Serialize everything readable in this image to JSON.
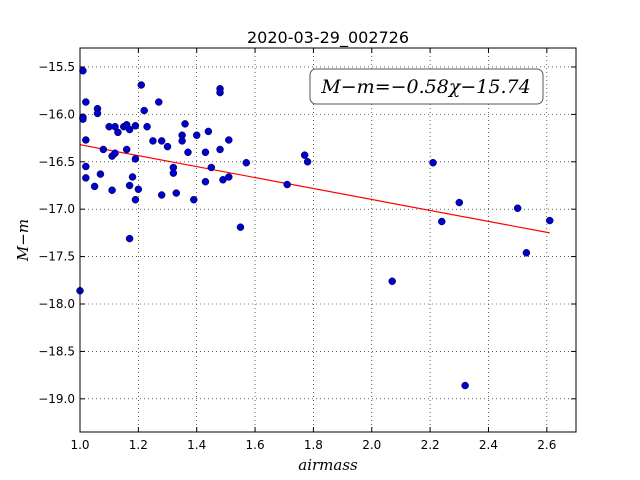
{
  "chart_data": {
    "type": "scatter",
    "title": "2020-03-29_002726",
    "xlabel": "airmass",
    "ylabel": "M−m",
    "xlim": [
      1.0,
      2.7
    ],
    "ylim": [
      -15.3,
      -19.35
    ],
    "y_inverted": true,
    "xticks": [
      1.0,
      1.2,
      1.4,
      1.6,
      1.8,
      2.0,
      2.2,
      2.4,
      2.6
    ],
    "xtick_labels": [
      "1.0",
      "1.2",
      "1.4",
      "1.6",
      "1.8",
      "2.0",
      "2.2",
      "2.4",
      "2.6"
    ],
    "yticks": [
      -15.5,
      -16.0,
      -16.5,
      -17.0,
      -17.5,
      -18.0,
      -18.5,
      -19.0
    ],
    "ytick_labels": [
      "−15.5",
      "−16.0",
      "−16.5",
      "−17.0",
      "−17.5",
      "−18.0",
      "−18.5",
      "−19.0"
    ],
    "grid": true,
    "annotation": "M−m=−0.58χ−15.74",
    "annotation_placement": "top-right",
    "series": [
      {
        "type": "scatter",
        "color": "#0000cc",
        "x": [
          1.0,
          1.01,
          1.01,
          1.01,
          1.02,
          1.02,
          1.02,
          1.02,
          1.05,
          1.06,
          1.06,
          1.07,
          1.08,
          1.1,
          1.11,
          1.11,
          1.12,
          1.12,
          1.13,
          1.15,
          1.16,
          1.16,
          1.17,
          1.17,
          1.17,
          1.18,
          1.19,
          1.19,
          1.19,
          1.2,
          1.21,
          1.22,
          1.23,
          1.25,
          1.27,
          1.28,
          1.28,
          1.3,
          1.32,
          1.32,
          1.33,
          1.35,
          1.35,
          1.36,
          1.37,
          1.39,
          1.4,
          1.43,
          1.43,
          1.44,
          1.45,
          1.48,
          1.48,
          1.48,
          1.49,
          1.51,
          1.51,
          1.55,
          1.57,
          1.71,
          1.77,
          1.78,
          2.07,
          2.21,
          2.24,
          2.3,
          2.32,
          2.5,
          2.53,
          2.61
        ],
        "y": [
          -17.86,
          -15.54,
          -16.03,
          -16.05,
          -15.87,
          -16.27,
          -16.55,
          -16.67,
          -16.76,
          -15.94,
          -15.99,
          -16.63,
          -16.37,
          -16.13,
          -16.44,
          -16.8,
          -16.13,
          -16.41,
          -16.19,
          -16.13,
          -16.11,
          -16.37,
          -16.16,
          -16.75,
          -17.31,
          -16.66,
          -16.12,
          -16.47,
          -16.9,
          -16.79,
          -15.69,
          -15.96,
          -16.13,
          -16.28,
          -15.87,
          -16.28,
          -16.85,
          -16.34,
          -16.56,
          -16.62,
          -16.83,
          -16.22,
          -16.28,
          -16.1,
          -16.4,
          -16.9,
          -16.22,
          -16.4,
          -16.71,
          -16.18,
          -16.56,
          -15.73,
          -15.77,
          -16.37,
          -16.69,
          -16.27,
          -16.66,
          -17.19,
          -16.51,
          -16.74,
          -16.43,
          -16.5,
          -17.76,
          -16.51,
          -17.13,
          -16.93,
          -18.86,
          -16.99,
          -17.46,
          -17.12
        ]
      },
      {
        "type": "line",
        "color": "#ff0000",
        "x": [
          1.0,
          2.61
        ],
        "y": [
          -16.32,
          -17.25
        ]
      }
    ]
  }
}
